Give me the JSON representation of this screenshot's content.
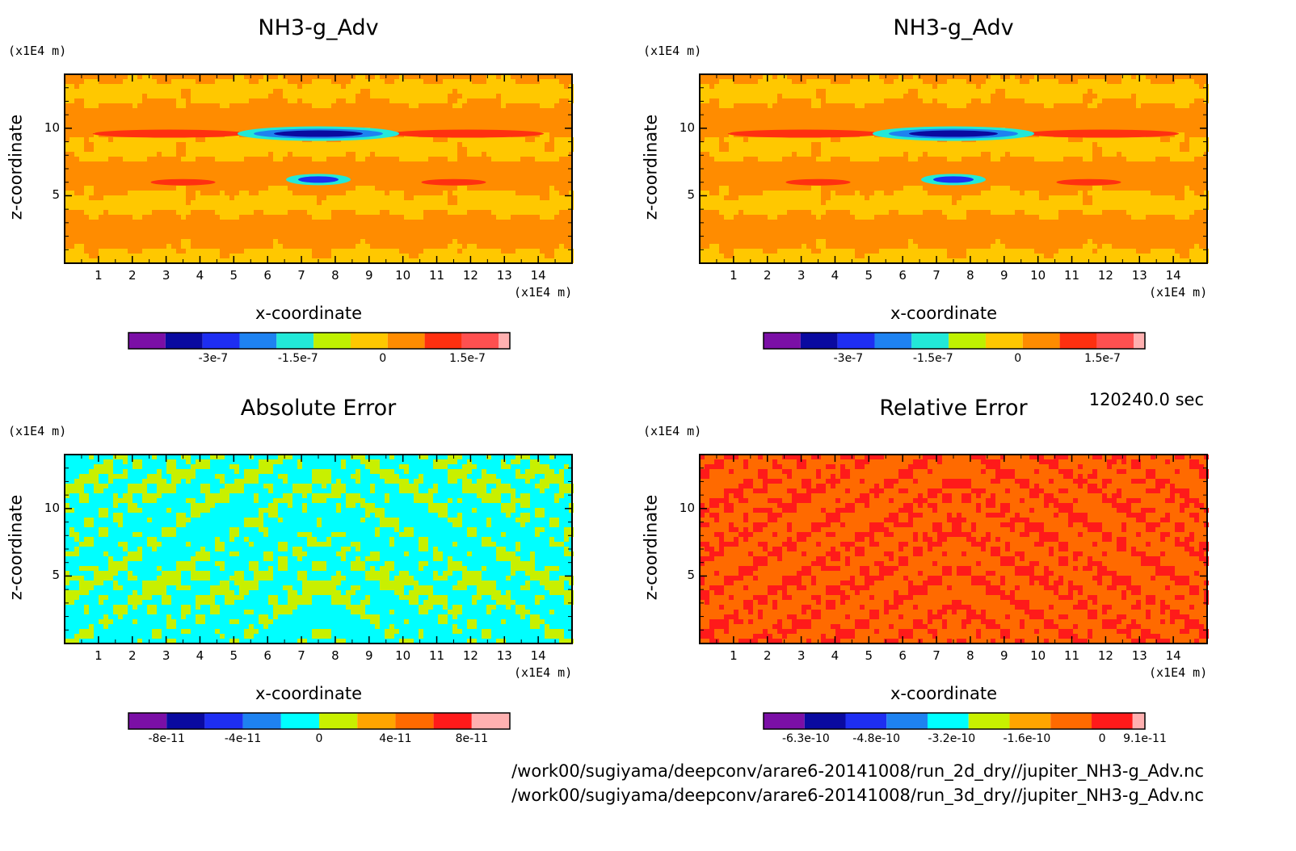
{
  "timestamp": "120240.0 sec",
  "footer_lines": [
    "/work00/sugiyama/deepconv/arare6-20141008/run_2d_dry//jupiter_NH3-g_Adv.nc",
    "/work00/sugiyama/deepconv/arare6-20141008/run_3d_dry//jupiter_NH3-g_Adv.nc"
  ],
  "chart_data": [
    {
      "type": "heatmap",
      "title": "NH3-g_Adv",
      "xlabel": "x-coordinate",
      "ylabel": "z-coordinate",
      "x_unit": "(x1E4 m)",
      "y_unit": "(x1E4 m)",
      "xticks": [
        "1",
        "2",
        "3",
        "4",
        "5",
        "6",
        "7",
        "8",
        "9",
        "10",
        "11",
        "12",
        "13",
        "14"
      ],
      "yticks": [
        "5",
        "10"
      ],
      "xlim": [
        0,
        15
      ],
      "ylim": [
        0,
        14
      ],
      "colorbar": {
        "colors": [
          "#7b0fa6",
          "#0a0aa0",
          "#1e2ef2",
          "#1e82f0",
          "#22e8d8",
          "#bff000",
          "#ffc800",
          "#ff8c00",
          "#ff3010",
          "#ff5050",
          "#ffb0b0"
        ],
        "tick_labels": [
          "-3e-7",
          "-1.5e-7",
          "0",
          "1.5e-7"
        ],
        "tick_values": [
          -3e-07,
          -1.5e-07,
          0,
          1.5e-07
        ],
        "range": [
          -4.5e-07,
          2.25e-07
        ]
      }
    },
    {
      "type": "heatmap",
      "title": "NH3-g_Adv",
      "xlabel": "x-coordinate",
      "ylabel": "z-coordinate",
      "x_unit": "(x1E4 m)",
      "y_unit": "(x1E4 m)",
      "xticks": [
        "1",
        "2",
        "3",
        "4",
        "5",
        "6",
        "7",
        "8",
        "9",
        "10",
        "11",
        "12",
        "13",
        "14"
      ],
      "yticks": [
        "5",
        "10"
      ],
      "xlim": [
        0,
        15
      ],
      "ylim": [
        0,
        14
      ],
      "colorbar": {
        "colors": [
          "#7b0fa6",
          "#0a0aa0",
          "#1e2ef2",
          "#1e82f0",
          "#22e8d8",
          "#bff000",
          "#ffc800",
          "#ff8c00",
          "#ff3010",
          "#ff5050",
          "#ffb0b0"
        ],
        "tick_labels": [
          "-3e-7",
          "-1.5e-7",
          "0",
          "1.5e-7"
        ],
        "tick_values": [
          -3e-07,
          -1.5e-07,
          0,
          1.5e-07
        ],
        "range": [
          -4.5e-07,
          2.25e-07
        ]
      }
    },
    {
      "type": "heatmap",
      "title": "Absolute Error",
      "xlabel": "x-coordinate",
      "ylabel": "z-coordinate",
      "x_unit": "(x1E4 m)",
      "y_unit": "(x1E4 m)",
      "xticks": [
        "1",
        "2",
        "3",
        "4",
        "5",
        "6",
        "7",
        "8",
        "9",
        "10",
        "11",
        "12",
        "13",
        "14"
      ],
      "yticks": [
        "5",
        "10"
      ],
      "xlim": [
        0,
        15
      ],
      "ylim": [
        0,
        14
      ],
      "colorbar": {
        "colors": [
          "#7b0fa6",
          "#0a0aa0",
          "#1e2ef2",
          "#1e82f0",
          "#00ffff",
          "#c8f000",
          "#ffa500",
          "#ff6a00",
          "#ff1a1a",
          "#ffb0b0"
        ],
        "tick_labels": [
          "-8e-11",
          "-4e-11",
          "0",
          "4e-11",
          "8e-11"
        ],
        "tick_values": [
          -8e-11,
          -4e-11,
          0,
          4e-11,
          8e-11
        ],
        "range": [
          -1e-10,
          1e-10
        ]
      }
    },
    {
      "type": "heatmap",
      "title": "Relative Error",
      "xlabel": "x-coordinate",
      "ylabel": "z-coordinate",
      "x_unit": "(x1E4 m)",
      "y_unit": "(x1E4 m)",
      "xticks": [
        "1",
        "2",
        "3",
        "4",
        "5",
        "6",
        "7",
        "8",
        "9",
        "10",
        "11",
        "12",
        "13",
        "14"
      ],
      "yticks": [
        "5",
        "10"
      ],
      "xlim": [
        0,
        15
      ],
      "ylim": [
        0,
        14
      ],
      "colorbar": {
        "colors": [
          "#7b0fa6",
          "#0a0aa0",
          "#1e2ef2",
          "#1e82f0",
          "#00ffff",
          "#c8f000",
          "#ffa500",
          "#ff6a00",
          "#ff1a1a",
          "#ffb0b0"
        ],
        "tick_labels": [
          "-6.3e-10",
          "-4.8e-10",
          "-3.2e-10",
          "-1.6e-10",
          "0",
          "9.1e-11"
        ],
        "tick_values": [
          -6.3e-10,
          -4.8e-10,
          -3.2e-10,
          -1.6e-10,
          0,
          9.1e-11
        ],
        "range": [
          -7.2e-10,
          9.1e-11
        ]
      }
    }
  ]
}
